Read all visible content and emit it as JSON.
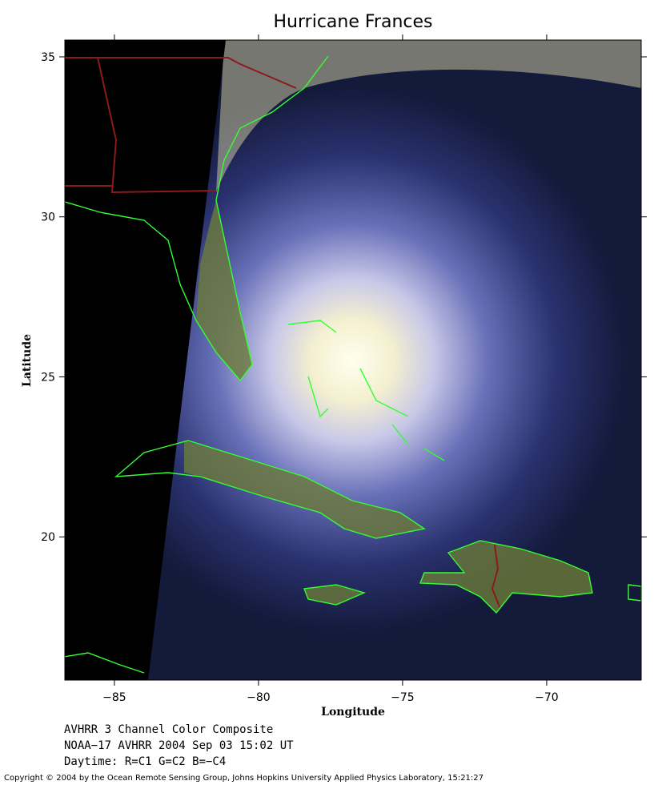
{
  "chart_data": {
    "type": "map",
    "title": "Hurricane Frances",
    "x_label": "Longitude",
    "y_label": "Latitude",
    "xlim": [
      -86.72,
      -66.72
    ],
    "ylim": [
      15.525,
      35.525
    ],
    "xticks": [
      {
        "value": -85,
        "label": "−85"
      },
      {
        "value": -80,
        "label": "−80"
      },
      {
        "value": -75,
        "label": "−75"
      },
      {
        "value": -70,
        "label": "−70"
      }
    ],
    "yticks": [
      20,
      25,
      30,
      35
    ],
    "caption": [
      "AVHRR 3 Channel Color Composite",
      "NOAA−17 AVHRR 2004 Sep 03 15:02 UT",
      "Daytime: R=C1 G=C2 B=−C4"
    ],
    "copyright": "Copyright © 2004 by the Ocean Remote Sensing Group, Johns Hopkins University Applied Physics Laboratory, 15:21:27"
  }
}
